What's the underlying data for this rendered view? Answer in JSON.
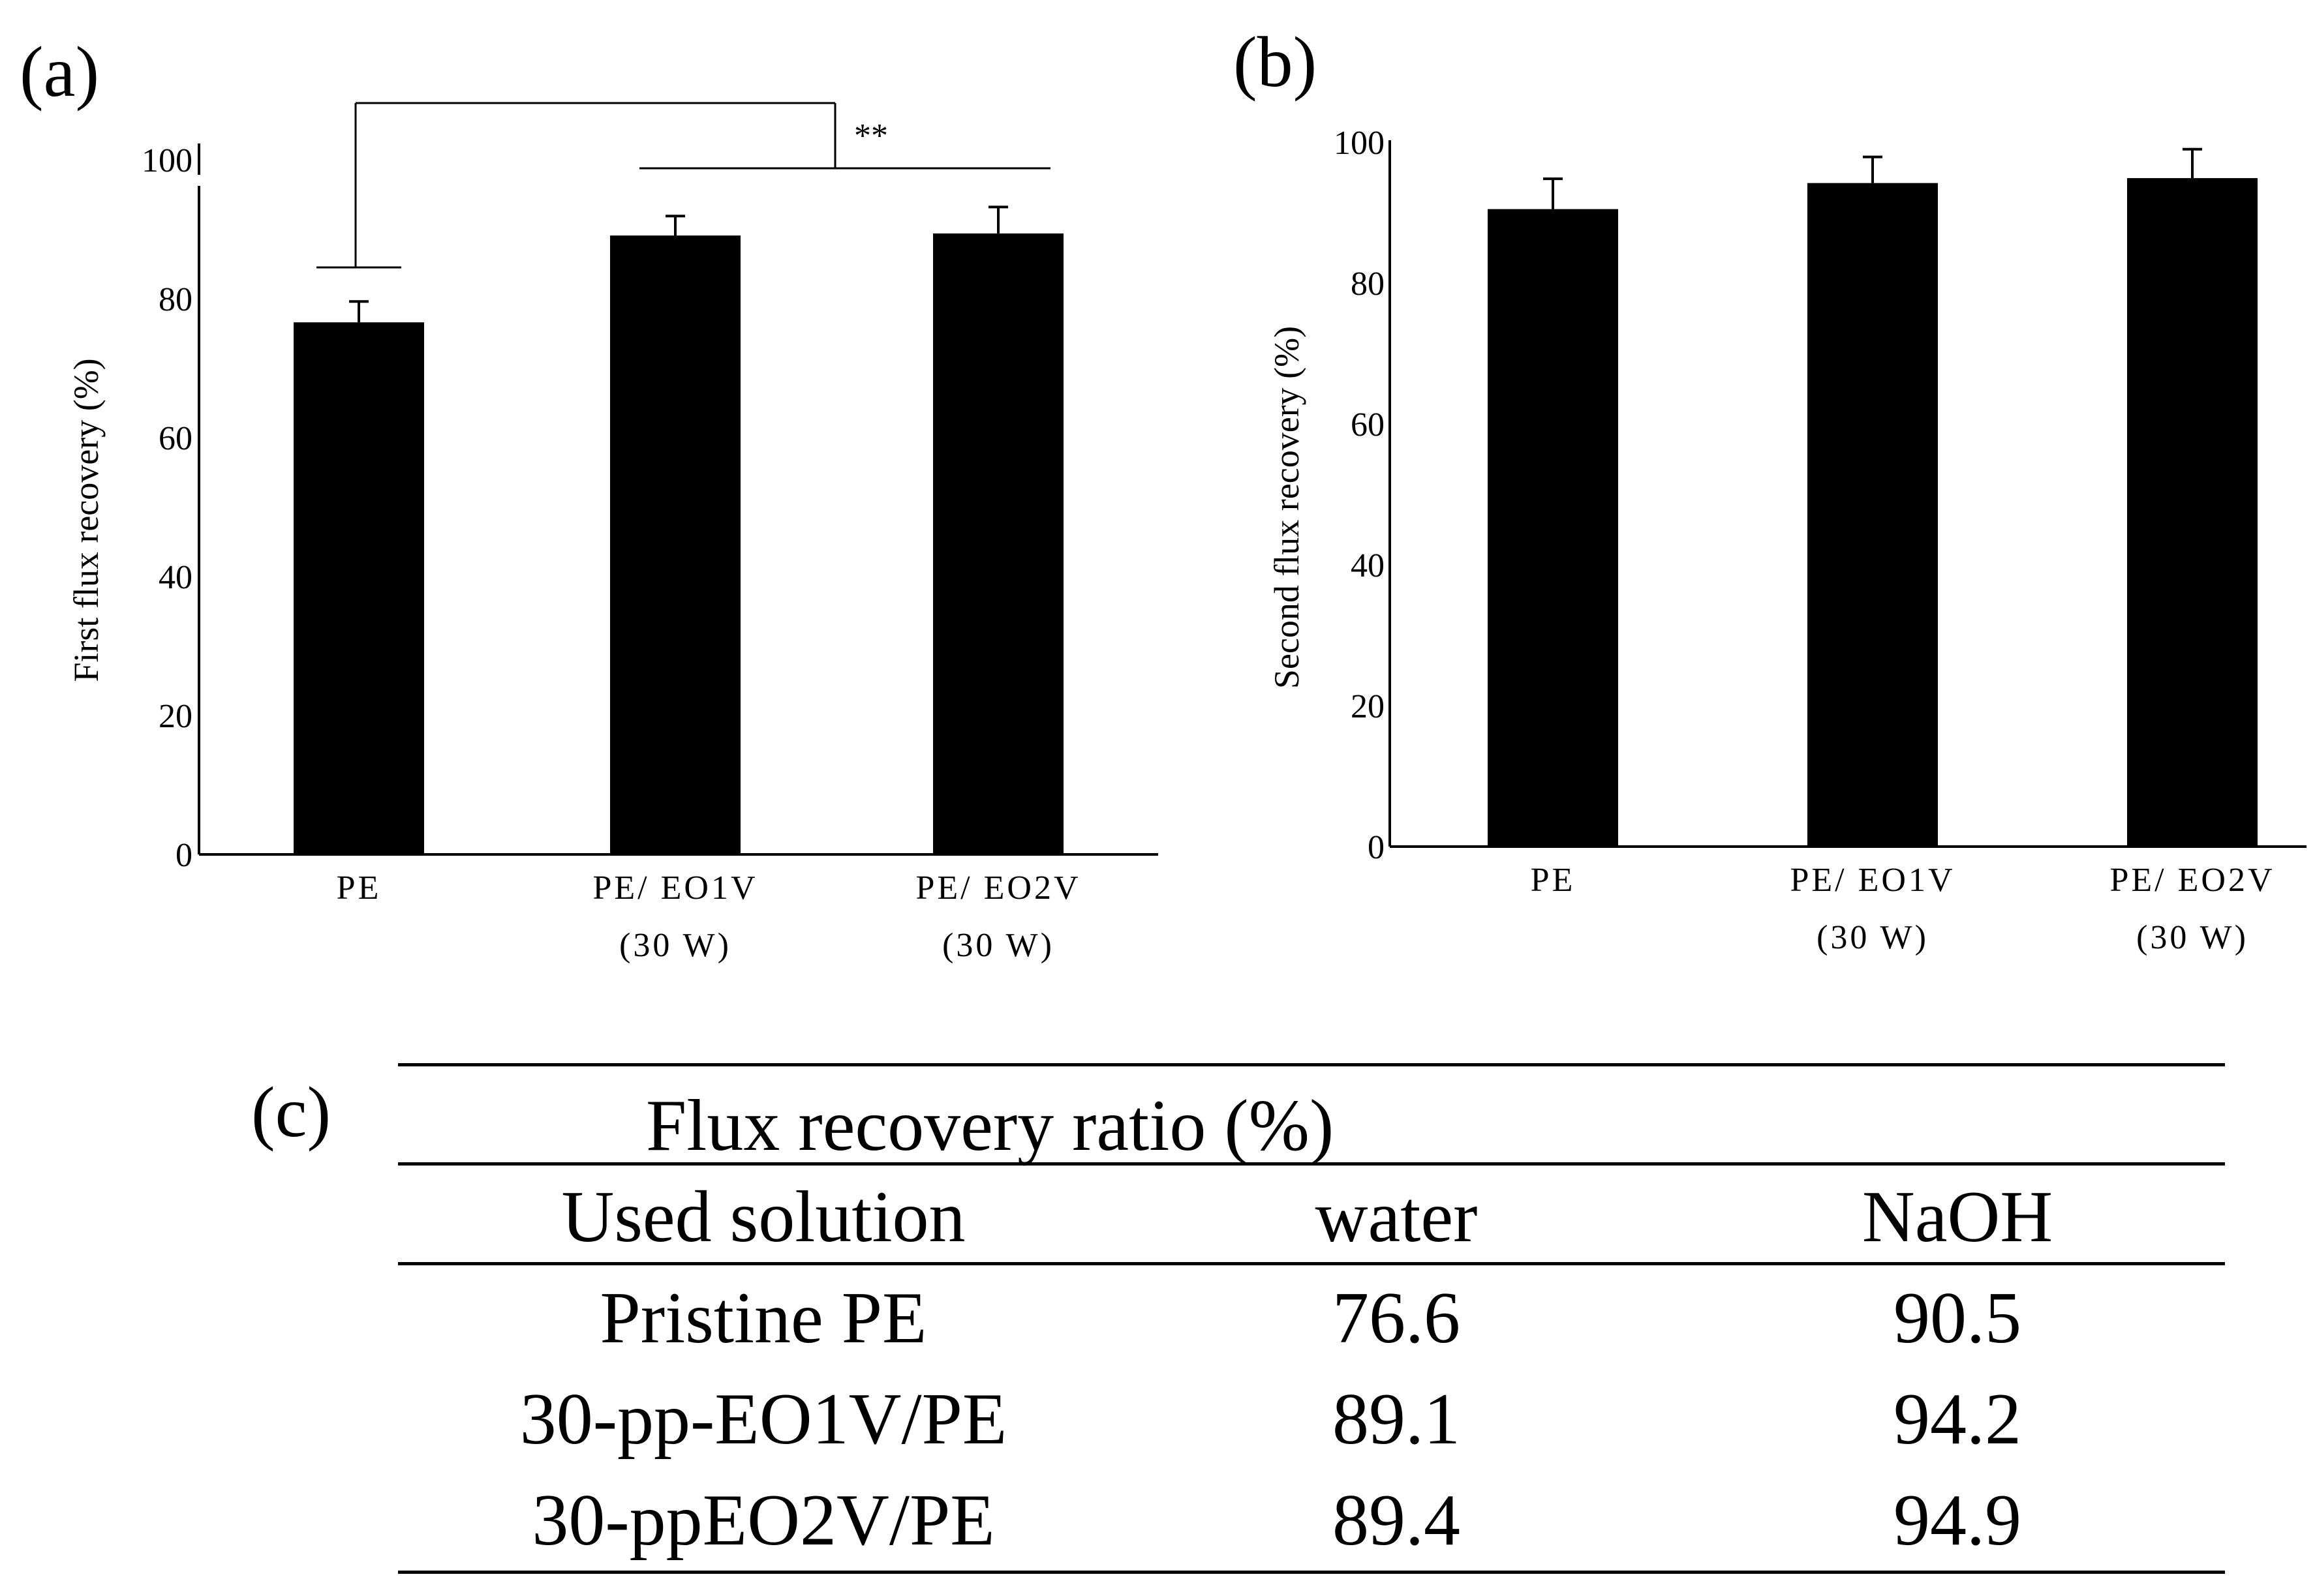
{
  "panels": {
    "a": "(a)",
    "b": "(b)",
    "c": "(c)"
  },
  "chart_data": [
    {
      "type": "bar",
      "panel": "(a)",
      "categories": [
        "PE",
        "PE/ EO1V\n(30 W)",
        "PE/ EO2V\n(30 W)"
      ],
      "values": [
        76.6,
        89.1,
        89.4
      ],
      "errors": [
        3.0,
        2.8,
        3.8
      ],
      "ylabel": "First flux recovery (%)",
      "xlabel": "",
      "ylim": [
        0,
        100
      ],
      "yticks": [
        0,
        20,
        40,
        60,
        80,
        100
      ],
      "significance": "**",
      "bar_color": "#000000",
      "grid": false
    },
    {
      "type": "bar",
      "panel": "(b)",
      "categories": [
        "PE",
        "PE/ EO1V\n(30 W)",
        "PE/ EO2V\n(30 W)"
      ],
      "values": [
        90.5,
        94.2,
        94.9
      ],
      "errors": [
        4.3,
        3.7,
        4.1
      ],
      "ylabel": "Second flux recovery (%)",
      "xlabel": "",
      "ylim": [
        0,
        100
      ],
      "yticks": [
        0,
        20,
        40,
        60,
        80,
        100
      ],
      "bar_color": "#000000",
      "grid": false
    }
  ],
  "table": {
    "title": "Flux recovery ratio (%)",
    "headers": [
      "Used solution",
      "water",
      "NaOH"
    ],
    "rows": [
      [
        "Pristine PE",
        "76.6",
        "90.5"
      ],
      [
        "30-pp-EO1V/PE",
        "89.1",
        "94.2"
      ],
      [
        "30-ppEO2V/PE",
        "89.4",
        "94.9"
      ]
    ]
  }
}
